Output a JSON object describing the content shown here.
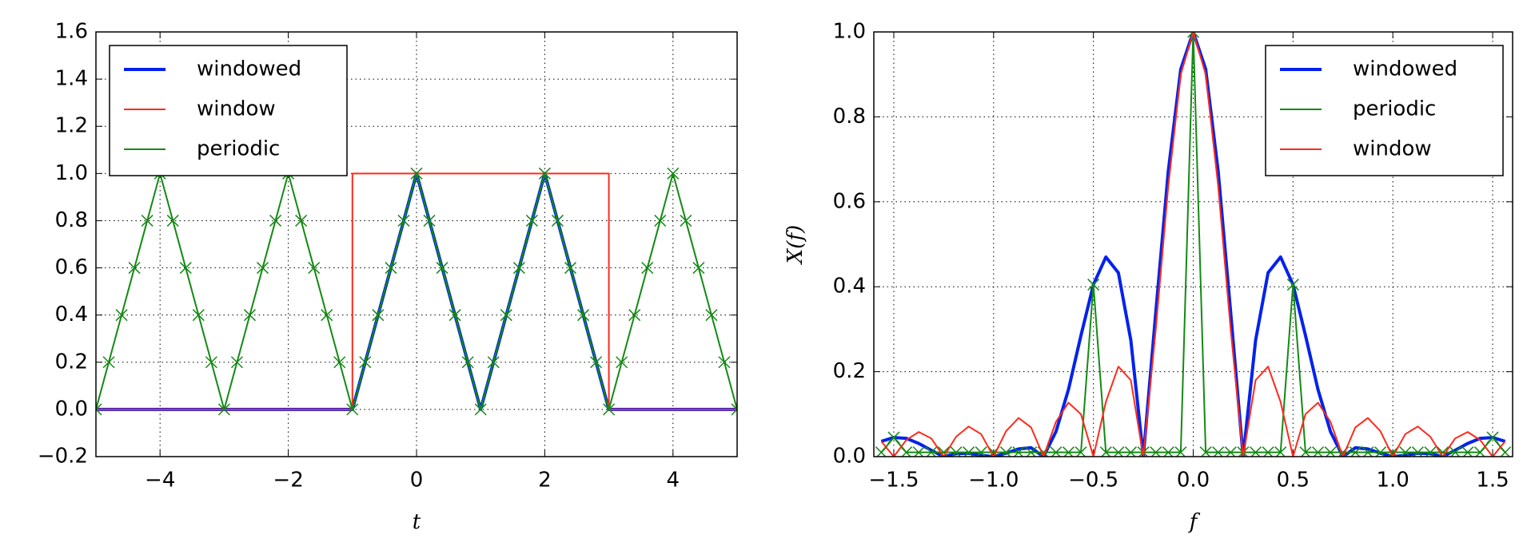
{
  "chart_data": [
    {
      "type": "line",
      "xlabel": "t",
      "xlim": [
        -5,
        5
      ],
      "ylim": [
        -0.2,
        1.6
      ],
      "xticks": [
        {
          "value": -4,
          "label": "−4"
        },
        {
          "value": -2,
          "label": "−2"
        },
        0,
        2,
        4
      ],
      "yticks": [
        {
          "value": -0.2,
          "label": "−0.2"
        },
        {
          "value": 0,
          "label": "0.0"
        },
        0.2,
        0.4,
        0.6,
        0.8,
        {
          "value": 1,
          "label": "1.0"
        },
        1.2,
        1.4,
        1.6
      ],
      "grid": true,
      "legend": "upper left",
      "series": [
        {
          "name": "windowed",
          "color": "#0022ee",
          "linewidth": 4,
          "x": [
            -5,
            -1,
            0,
            1,
            2,
            3,
            5
          ],
          "values": [
            0,
            0,
            1,
            0,
            1,
            0,
            0
          ]
        },
        {
          "name": "window",
          "color": "#ff2a1a",
          "linewidth": 2,
          "x": [
            -5,
            -1,
            -1,
            3,
            3,
            5
          ],
          "values": [
            0,
            0,
            1,
            1,
            0,
            0
          ]
        },
        {
          "name": "periodic",
          "color": "#138a13",
          "linewidth": 2,
          "marker": "x",
          "x": [
            -5,
            -4.8,
            -4.6,
            -4.4,
            -4.2,
            -4,
            -3.8,
            -3.6,
            -3.4,
            -3.2,
            -3,
            -2.8,
            -2.6,
            -2.4,
            -2.2,
            -2,
            -1.8,
            -1.6,
            -1.4,
            -1.2,
            -1,
            -0.8,
            -0.6,
            -0.4,
            -0.2,
            0,
            0.2,
            0.4,
            0.6,
            0.8,
            1,
            1.2,
            1.4,
            1.6,
            1.8,
            2,
            2.2,
            2.4,
            2.6,
            2.8,
            3,
            3.2,
            3.4,
            3.6,
            3.8,
            4,
            4.2,
            4.4,
            4.6,
            4.8,
            5
          ],
          "values": [
            0,
            0.2,
            0.4,
            0.6,
            0.8,
            1,
            0.8,
            0.6,
            0.4,
            0.2,
            0,
            0.2,
            0.4,
            0.6,
            0.8,
            1,
            0.8,
            0.6,
            0.4,
            0.2,
            0,
            0.2,
            0.4,
            0.6,
            0.8,
            1,
            0.8,
            0.6,
            0.4,
            0.2,
            0,
            0.2,
            0.4,
            0.6,
            0.8,
            1,
            0.8,
            0.6,
            0.4,
            0.2,
            0,
            0.2,
            0.4,
            0.6,
            0.8,
            1,
            0.8,
            0.6,
            0.4,
            0.2,
            0
          ]
        }
      ]
    },
    {
      "type": "line",
      "xlabel": "f",
      "ylabel": "X(f)",
      "xlim": [
        -1.6,
        1.6
      ],
      "ylim": [
        0,
        1
      ],
      "xticks": [
        {
          "value": -1.5,
          "label": "−1.5"
        },
        {
          "value": -1,
          "label": "−1.0"
        },
        {
          "value": -0.5,
          "label": "−0.5"
        },
        {
          "value": 0,
          "label": "0.0"
        },
        0.5,
        {
          "value": 1,
          "label": "1.0"
        },
        1.5
      ],
      "yticks": [
        {
          "value": 0,
          "label": "0.0"
        },
        0.2,
        0.4,
        0.6,
        0.8,
        {
          "value": 1,
          "label": "1.0"
        }
      ],
      "grid": true,
      "legend": "upper right",
      "series": [
        {
          "name": "windowed",
          "color": "#0022ee",
          "linewidth": 4,
          "x": [
            -1.5625,
            -1.5,
            -1.4375,
            -1.375,
            -1.3125,
            -1.25,
            -1.1875,
            -1.125,
            -1.0625,
            -1,
            -0.9375,
            -0.875,
            -0.8125,
            -0.75,
            -0.6875,
            -0.625,
            -0.5625,
            -0.5,
            -0.4375,
            -0.375,
            -0.3125,
            -0.25,
            -0.1875,
            -0.125,
            -0.0625,
            0,
            0.0625,
            0.125,
            0.1875,
            0.25,
            0.3125,
            0.375,
            0.4375,
            0.5,
            0.5625,
            0.625,
            0.6875,
            0.75,
            0.8125,
            0.875,
            0.9375,
            1,
            1.0625,
            1.125,
            1.1875,
            1.25,
            1.3125,
            1.375,
            1.4375,
            1.5,
            1.5625
          ],
          "values": [
            0.036,
            0.045,
            0.043,
            0.031,
            0.015,
            0,
            0.007,
            0.008,
            0.003,
            0,
            0.008,
            0.018,
            0.021,
            0,
            0.059,
            0.158,
            0.285,
            0.405,
            0.47,
            0.433,
            0.274,
            0,
            0.34,
            0.672,
            0.912,
            1,
            0.912,
            0.672,
            0.34,
            0,
            0.274,
            0.433,
            0.47,
            0.405,
            0.285,
            0.158,
            0.059,
            0,
            0.021,
            0.018,
            0.008,
            0,
            0.003,
            0.008,
            0.007,
            0,
            0.015,
            0.031,
            0.043,
            0.045,
            0.036
          ]
        },
        {
          "name": "periodic",
          "color": "#138a13",
          "linewidth": 2,
          "marker": "x",
          "x": [
            -1.5625,
            -1.5,
            -1.4375,
            -1.375,
            -1.3125,
            -1.25,
            -1.1875,
            -1.125,
            -1.0625,
            -1,
            -0.9375,
            -0.875,
            -0.8125,
            -0.75,
            -0.6875,
            -0.625,
            -0.5625,
            -0.5,
            -0.4375,
            -0.375,
            -0.3125,
            -0.25,
            -0.1875,
            -0.125,
            -0.0625,
            0,
            0.0625,
            0.125,
            0.1875,
            0.25,
            0.3125,
            0.375,
            0.4375,
            0.5,
            0.5625,
            0.625,
            0.6875,
            0.75,
            0.8125,
            0.875,
            0.9375,
            1,
            1.0625,
            1.125,
            1.1875,
            1.25,
            1.3125,
            1.375,
            1.4375,
            1.5,
            1.5625
          ],
          "values": [
            0.01,
            0.045,
            0.01,
            0.01,
            0.01,
            0.01,
            0.01,
            0.01,
            0.01,
            0.01,
            0.01,
            0.01,
            0.01,
            0.01,
            0.01,
            0.01,
            0.01,
            0.405,
            0.01,
            0.01,
            0.01,
            0.01,
            0.01,
            0.01,
            0.01,
            1,
            0.01,
            0.01,
            0.01,
            0.01,
            0.01,
            0.01,
            0.01,
            0.405,
            0.01,
            0.01,
            0.01,
            0.01,
            0.01,
            0.01,
            0.01,
            0.01,
            0.01,
            0.01,
            0.01,
            0.01,
            0.01,
            0.01,
            0.01,
            0.045,
            0.01
          ]
        },
        {
          "name": "window",
          "color": "#ff2a1a",
          "linewidth": 2,
          "x": [
            -1.5625,
            -1.5,
            -1.4375,
            -1.375,
            -1.3125,
            -1.25,
            -1.1875,
            -1.125,
            -1.0625,
            -1,
            -0.9375,
            -0.875,
            -0.8125,
            -0.75,
            -0.6875,
            -0.625,
            -0.5625,
            -0.5,
            -0.4375,
            -0.375,
            -0.3125,
            -0.25,
            -0.1875,
            -0.125,
            -0.0625,
            0,
            0.0625,
            0.125,
            0.1875,
            0.25,
            0.3125,
            0.375,
            0.4375,
            0.5,
            0.5625,
            0.625,
            0.6875,
            0.75,
            0.8125,
            0.875,
            0.9375,
            1,
            1.0625,
            1.125,
            1.1875,
            1.25,
            1.3125,
            1.375,
            1.4375,
            1.5,
            1.5625
          ],
          "values": [
            0.036,
            0,
            0.039,
            0.058,
            0.043,
            0,
            0.047,
            0.071,
            0.053,
            0,
            0.06,
            0.091,
            0.069,
            0,
            0.082,
            0.127,
            0.1,
            0,
            0.129,
            0.212,
            0.18,
            0,
            0.3,
            0.637,
            0.9,
            1,
            0.9,
            0.637,
            0.3,
            0,
            0.18,
            0.212,
            0.129,
            0,
            0.1,
            0.127,
            0.082,
            0,
            0.069,
            0.091,
            0.06,
            0,
            0.053,
            0.071,
            0.047,
            0,
            0.043,
            0.058,
            0.039,
            0,
            0.036
          ]
        }
      ]
    }
  ]
}
